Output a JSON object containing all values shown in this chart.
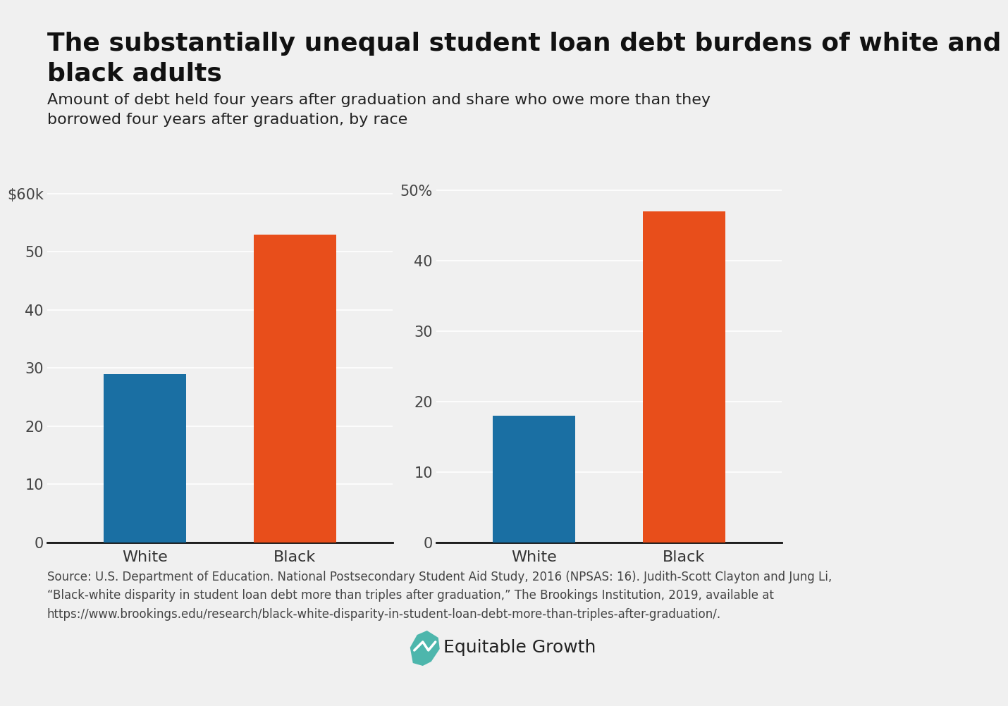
{
  "title_line1": "The substantially unequal student loan debt burdens of white and",
  "title_line2": "black adults",
  "subtitle_line1": "Amount of debt held four years after graduation and share who owe more than they",
  "subtitle_line2": "borrowed four years after graduation, by race",
  "left_chart": {
    "categories": [
      "White",
      "Black"
    ],
    "values": [
      29,
      53
    ],
    "colors": [
      "#1a6fa3",
      "#e84e1b"
    ],
    "yticks": [
      0,
      10,
      20,
      30,
      40,
      50,
      60
    ],
    "ytick_labels": [
      "0",
      "10",
      "20",
      "30",
      "40",
      "50",
      "$60k"
    ],
    "ylim": [
      0,
      63
    ]
  },
  "right_chart": {
    "categories": [
      "White",
      "Black"
    ],
    "values": [
      18,
      47
    ],
    "colors": [
      "#1a6fa3",
      "#e84e1b"
    ],
    "yticks": [
      0,
      10,
      20,
      30,
      40,
      50
    ],
    "ytick_labels": [
      "0",
      "10",
      "20",
      "30",
      "40",
      "50%"
    ],
    "ylim": [
      0,
      52
    ]
  },
  "source_text": "Source: U.S. Department of Education. National Postsecondary Student Aid Study, 2016 (NPSAS: 16). Judith-Scott Clayton and Jung Li,\n“Black-white disparity in student loan debt more than triples after graduation,” The Brookings Institution, 2019, available at\nhttps://www.brookings.edu/research/black-white-disparity-in-student-loan-debt-more-than-triples-after-graduation/.",
  "equitable_growth_text": "Equitable Growth",
  "background_color": "#f0f0f0",
  "bar_width": 0.55,
  "title_fontsize": 26,
  "subtitle_fontsize": 16,
  "tick_fontsize": 15,
  "category_fontsize": 16,
  "source_fontsize": 12,
  "logo_fontsize": 18
}
